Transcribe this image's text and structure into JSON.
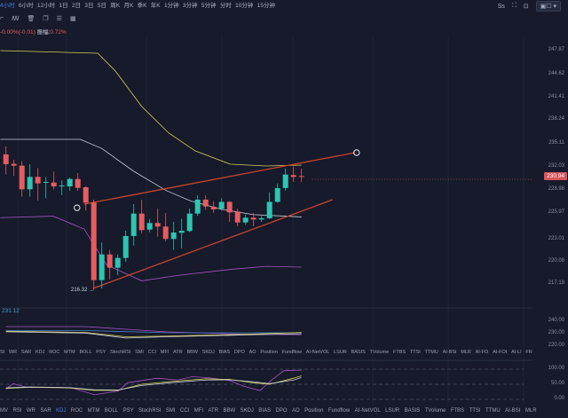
{
  "timeframes": [
    "4小时",
    "6小时",
    "12小时",
    "1日",
    "2日",
    "3日",
    "5日",
    "周K",
    "月K",
    "季K",
    "年K",
    "1分钟",
    "3分钟",
    "5分钟",
    "分时",
    "10分钟",
    "15分钟"
  ],
  "selected_timeframe": "4小时",
  "toolbar_icons": [
    "draw-icon",
    "indicator-icon",
    "delete-icon",
    "copy-icon",
    "settings-icon",
    "calendar-icon"
  ],
  "right_tools": {
    "label": "Ss",
    "dropdown": "▣☐ ▾"
  },
  "change": {
    "pct": "-0.00%(-0.01)",
    "amp_label": "振幅:",
    "amp_value": "0.72%"
  },
  "price_axis": [
    "247.87",
    "244.62",
    "241.41",
    "238.24",
    "235.11",
    "232.03",
    "228.98",
    "225.97",
    "223.01",
    "220.08",
    "217.19"
  ],
  "current_price": "230.94",
  "low_marker": "216.32 →",
  "volume_panel": {
    "value": "231.12",
    "axis": [
      "240.00",
      "230.00",
      "220.00"
    ]
  },
  "kdj_panel": {
    "axis": [
      "100.00",
      "50.00",
      "0.00"
    ]
  },
  "indicators_row1": [
    "SI",
    "WR",
    "SAR",
    "KDJ",
    "ROC",
    "MTM",
    "BOLL",
    "PSY",
    "StochRSI",
    "SMI",
    "CCI",
    "MFI",
    "ATR",
    "BBW",
    "SKDJ",
    "BIAS",
    "DPO",
    "AO",
    "Position",
    "Fundflow",
    "AI-NetVOL",
    "LSUR",
    "BASIS",
    "TVolume",
    "FTBS",
    "TTSI",
    "TTMU",
    "AI-BSI",
    "MLR",
    "AI-FO",
    "AI-FOI",
    "AI-LI",
    "FR"
  ],
  "indicators_row2": [
    "MV",
    "RSI",
    "WR",
    "SAR",
    "KDJ",
    "ROC",
    "MTM",
    "BOLL",
    "PSY",
    "StochRSI",
    "SMI",
    "CCI",
    "MFI",
    "ATR",
    "BBW",
    "SKDJ",
    "BIAS",
    "DPO",
    "AO",
    "Position",
    "Fundflow",
    "AI-NetVOL",
    "LSUR",
    "BASIS",
    "TVolume",
    "FTBS",
    "TTSI",
    "TTMU",
    "AI-BSI",
    "MLR"
  ],
  "selected_indicator": "KDJ",
  "colors": {
    "up": "#2fc4b2",
    "down": "#e55d62",
    "bg": "#161a2a",
    "trend": "#c9432f",
    "ma_yellow": "#d6d25a",
    "ma_white": "#c8ccd8",
    "ma_purple": "#a855c4"
  },
  "chart_data": {
    "type": "candlestick",
    "ylim": [
      217.19,
      247.87
    ],
    "candles": [
      [
        234.22,
        232.94,
        235.27,
        231.57
      ],
      [
        232.98,
        232.74,
        233.52,
        231.38
      ],
      [
        232.74,
        229.63,
        233.32,
        228.66
      ],
      [
        229.63,
        231.26,
        232.94,
        228.66
      ],
      [
        231.26,
        230.41,
        232.43,
        228.15
      ],
      [
        230.49,
        230.6,
        231.26,
        228.46
      ],
      [
        230.52,
        230.02,
        231.96,
        229.63
      ],
      [
        230.06,
        230.14,
        230.8,
        228.85
      ],
      [
        230.02,
        230.99,
        231.18,
        229.44
      ],
      [
        230.99,
        229.82,
        231.77,
        229.44
      ],
      [
        229.9,
        227.88,
        230.02,
        226.83
      ],
      [
        227.88,
        217.69,
        228.27,
        216.41
      ],
      [
        217.69,
        221.07,
        222.63,
        216.6
      ],
      [
        221.07,
        219.32,
        221.66,
        217.77
      ],
      [
        219.32,
        220.61,
        221.07,
        218.35
      ],
      [
        220.61,
        223.49,
        224.18,
        220.1
      ],
      [
        223.49,
        226.44,
        227.69,
        222.24
      ],
      [
        226.44,
        224.26,
        228.27,
        223.8
      ],
      [
        224.34,
        225.2,
        225.74,
        223.99
      ],
      [
        225.2,
        224.73,
        227.1,
        223.41
      ],
      [
        224.73,
        223.1,
        226.52,
        222.82
      ],
      [
        223.1,
        223.95,
        225.35,
        221.66
      ],
      [
        223.91,
        224.18,
        225.74,
        221.85
      ],
      [
        224.15,
        226.44,
        227.1,
        223.99
      ],
      [
        226.44,
        228.27,
        228.85,
        226.13
      ],
      [
        228.27,
        227.37,
        228.85,
        226.91
      ],
      [
        227.34,
        226.99,
        228.07,
        226.52
      ],
      [
        227.06,
        227.98,
        228.46,
        226.83
      ],
      [
        227.98,
        226.6,
        228.07,
        225.35
      ],
      [
        226.71,
        225.27,
        227.1,
        224.77
      ],
      [
        225.27,
        225.9,
        226.32,
        224.96
      ],
      [
        225.9,
        225.66,
        226.52,
        224.77
      ],
      [
        225.66,
        225.82,
        226.13,
        225.35
      ],
      [
        225.82,
        227.98,
        229.24,
        225.74
      ],
      [
        227.98,
        229.79,
        230.41,
        227.88
      ],
      [
        229.79,
        231.57,
        232.35,
        229.44
      ],
      [
        231.5,
        231.26,
        232.55,
        230.6
      ],
      [
        231.38,
        231.3,
        232.35,
        230.6
      ]
    ],
    "ma_upper": [
      [
        -0.7,
        247.87
      ],
      [
        11.5,
        247.52
      ],
      [
        13.7,
        245.19
      ],
      [
        17.0,
        240.52
      ],
      [
        20.4,
        237.02
      ],
      [
        23.7,
        234.68
      ],
      [
        28.1,
        232.93
      ],
      [
        32.6,
        232.7
      ],
      [
        37.0,
        232.82
      ]
    ],
    "ma_mid": [
      [
        -0.7,
        236.2
      ],
      [
        9.3,
        236.2
      ],
      [
        12.0,
        235.0
      ],
      [
        16.0,
        232.0
      ],
      [
        20.0,
        229.5
      ],
      [
        23.1,
        228.1
      ],
      [
        27.0,
        227.0
      ],
      [
        31.0,
        226.3
      ],
      [
        35.0,
        226.1
      ],
      [
        37.0,
        226.0
      ]
    ],
    "ma_lower": [
      [
        -0.7,
        225.9
      ],
      [
        5.9,
        226.1
      ],
      [
        9.8,
        224.4
      ],
      [
        12.6,
        219.7
      ],
      [
        17.0,
        217.6
      ],
      [
        21.5,
        218.3
      ],
      [
        28.1,
        219.1
      ],
      [
        32.6,
        219.5
      ],
      [
        37.0,
        219.4
      ]
    ],
    "trendlines": [
      {
        "from": [
          9.8,
          227.68
        ],
        "to": [
          43.7,
          234.45
        ]
      },
      {
        "from": [
          10.9,
          216.6
        ],
        "to": [
          40.9,
          228.27
        ]
      }
    ],
    "markers": [
      [
        8.9,
        227.2
      ],
      [
        43.9,
        234.45
      ]
    ],
    "volume_series": [
      {
        "name": "purple",
        "values": [
          [
            0,
            235.7
          ],
          [
            10,
            235.7
          ],
          [
            20,
            231.5
          ],
          [
            30,
            229.5
          ],
          [
            37,
            229.2
          ]
        ]
      },
      {
        "name": "blue",
        "values": [
          [
            0,
            232.5
          ],
          [
            10,
            232.5
          ],
          [
            20,
            230.8
          ],
          [
            30,
            230.7
          ],
          [
            37,
            230.8
          ]
        ]
      },
      {
        "name": "yellow",
        "values": [
          [
            0,
            232.0
          ],
          [
            10,
            231.0
          ],
          [
            15,
            227.5
          ],
          [
            20,
            228.0
          ],
          [
            30,
            229.5
          ],
          [
            37,
            231.0
          ]
        ]
      },
      {
        "name": "white",
        "values": [
          [
            0,
            231.5
          ],
          [
            10,
            230.5
          ],
          [
            15,
            226.5
          ],
          [
            20,
            227.5
          ],
          [
            30,
            229.0
          ],
          [
            37,
            230.0
          ]
        ]
      }
    ],
    "kdj_series": [
      {
        "name": "J",
        "values": [
          [
            0,
            34
          ],
          [
            0.9,
            52
          ],
          [
            2.6,
            40
          ],
          [
            6.7,
            40
          ],
          [
            8.5,
            36
          ],
          [
            11.1,
            15
          ],
          [
            14.1,
            28
          ],
          [
            15.2,
            55
          ],
          [
            18.9,
            70
          ],
          [
            21.5,
            64
          ],
          [
            23.3,
            75
          ],
          [
            25.2,
            72
          ],
          [
            28.1,
            62
          ],
          [
            29.6,
            45
          ],
          [
            31.8,
            29
          ],
          [
            33.3,
            65
          ],
          [
            34.8,
            95
          ],
          [
            37,
            97
          ]
        ]
      },
      {
        "name": "K",
        "values": [
          [
            0,
            36
          ],
          [
            3,
            40
          ],
          [
            8,
            38
          ],
          [
            11,
            30
          ],
          [
            14,
            30
          ],
          [
            17,
            50
          ],
          [
            21,
            60
          ],
          [
            25,
            68
          ],
          [
            28,
            66
          ],
          [
            31,
            55
          ],
          [
            33,
            50
          ],
          [
            36,
            70
          ],
          [
            37,
            78
          ]
        ]
      },
      {
        "name": "D",
        "values": [
          [
            0,
            38
          ],
          [
            3,
            41
          ],
          [
            8,
            39
          ],
          [
            11,
            32
          ],
          [
            14,
            31
          ],
          [
            17,
            46
          ],
          [
            21,
            56
          ],
          [
            25,
            64
          ],
          [
            28,
            65
          ],
          [
            31,
            58
          ],
          [
            33,
            52
          ],
          [
            36,
            64
          ],
          [
            37,
            72
          ]
        ]
      }
    ]
  }
}
